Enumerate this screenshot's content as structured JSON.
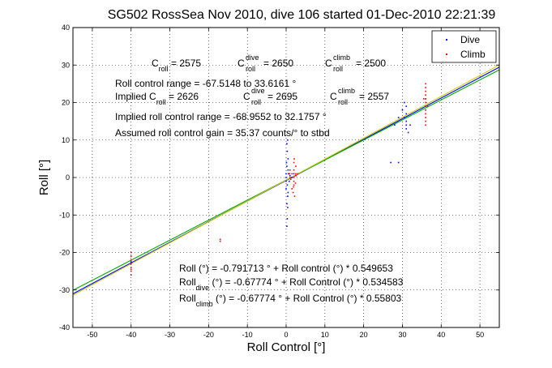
{
  "chart_data": {
    "type": "scatter",
    "title": "SG502 RossSea Nov 2010, dive 106 started 01-Dec-2010 22:21:39",
    "xlabel": "Roll Control [°]",
    "ylabel": "Roll [°]",
    "xlim": [
      -55,
      55
    ],
    "ylim": [
      -40,
      40
    ],
    "xticks": [
      -50,
      -40,
      -30,
      -20,
      -10,
      0,
      10,
      20,
      30,
      40,
      50
    ],
    "yticks": [
      -40,
      -30,
      -20,
      -10,
      0,
      10,
      20,
      30,
      40
    ],
    "grid": true,
    "legend": {
      "placement": "top-right",
      "entries": [
        "Dive",
        "Climb"
      ]
    },
    "colors": {
      "dive": "#0000ff",
      "climb": "#ff0000",
      "fit_all": "#0000ff",
      "fit_dive": "#00aa00",
      "fit_climb": "#cccc00"
    },
    "fit_lines": [
      {
        "color": "#0000ff",
        "intercept": -0.791713,
        "slope": 0.549653
      },
      {
        "color": "#00aa00",
        "intercept": -0.67774,
        "slope": 0.534583
      },
      {
        "color": "#cccc00",
        "intercept": -0.67774,
        "slope": 0.55803
      }
    ],
    "series": [
      {
        "name": "Dive",
        "points": [
          [
            -40,
            -22.5
          ],
          [
            -40,
            -22
          ],
          [
            -40,
            -23
          ],
          [
            0,
            -1
          ],
          [
            0,
            0
          ],
          [
            0,
            1
          ],
          [
            0.5,
            2
          ],
          [
            0.3,
            -2
          ],
          [
            0,
            -3
          ],
          [
            0.5,
            -4
          ],
          [
            0.2,
            3
          ],
          [
            0.5,
            5
          ],
          [
            0.3,
            7
          ],
          [
            0.2,
            9
          ],
          [
            0.4,
            10
          ],
          [
            0.4,
            -5
          ],
          [
            0.2,
            -7
          ],
          [
            0.4,
            -8
          ],
          [
            0.3,
            -11
          ],
          [
            0.2,
            -13
          ],
          [
            0.6,
            1
          ],
          [
            0.8,
            -1
          ],
          [
            1,
            0.5
          ],
          [
            0.1,
            4
          ],
          [
            1.5,
            0
          ],
          [
            2,
            1
          ],
          [
            2.5,
            0.5
          ],
          [
            28,
            14
          ],
          [
            29,
            16
          ],
          [
            30,
            18
          ],
          [
            30.5,
            16
          ],
          [
            31,
            14
          ],
          [
            31,
            13
          ],
          [
            31,
            15
          ],
          [
            31,
            17
          ],
          [
            31.5,
            12
          ],
          [
            32,
            14
          ],
          [
            31,
            19
          ],
          [
            30.5,
            20
          ],
          [
            29,
            4
          ],
          [
            27,
            4
          ],
          [
            36,
            18
          ],
          [
            36,
            19
          ],
          [
            36,
            21
          ]
        ]
      },
      {
        "name": "Climb",
        "points": [
          [
            -40,
            -20
          ],
          [
            -40,
            -21
          ],
          [
            -40,
            -22
          ],
          [
            -40,
            -23
          ],
          [
            -40,
            -24
          ],
          [
            -40,
            -25
          ],
          [
            -40,
            -26
          ],
          [
            -40,
            -24.5
          ],
          [
            -17,
            -17
          ],
          [
            -17,
            -16.5
          ],
          [
            1,
            0
          ],
          [
            1.5,
            1
          ],
          [
            2,
            0
          ],
          [
            2,
            2
          ],
          [
            2,
            -1
          ],
          [
            2.5,
            1
          ],
          [
            2.5,
            3
          ],
          [
            2,
            4
          ],
          [
            2,
            -2
          ],
          [
            1.5,
            -3
          ],
          [
            1,
            2
          ],
          [
            3,
            1
          ],
          [
            1.8,
            -4
          ],
          [
            2.2,
            -5
          ],
          [
            2.1,
            5
          ],
          [
            1.9,
            -2.5
          ],
          [
            2.4,
            -1.5
          ],
          [
            1.2,
            -0.5
          ],
          [
            0.9,
            1
          ],
          [
            2.6,
            0.5
          ],
          [
            36,
            14
          ],
          [
            36,
            16
          ],
          [
            36,
            17
          ],
          [
            36,
            18
          ],
          [
            36,
            19
          ],
          [
            36,
            20
          ],
          [
            36,
            21
          ],
          [
            36,
            22
          ],
          [
            36,
            23
          ],
          [
            36,
            24
          ],
          [
            36,
            25
          ],
          [
            35.5,
            21
          ],
          [
            36.5,
            19
          ],
          [
            36,
            15
          ]
        ]
      }
    ]
  },
  "annotations": {
    "c_roll": {
      "base": "C",
      "sub": "roll",
      "sup": "",
      "text": " = 2575"
    },
    "c_roll_dive": {
      "base": "C",
      "sub": "roll",
      "sup": "dive",
      "text": " = 2650"
    },
    "c_roll_climb": {
      "base": "C",
      "sub": "roll",
      "sup": "climb",
      "text": " = 2500"
    },
    "range_line": "Roll control range = -67.5148 to 33.6161 °",
    "implied_prefix": "Implied C",
    "implied_sub": "roll",
    "implied_text": " = 2626",
    "implied_dive": {
      "base": "C",
      "sub": "roll",
      "sup": "dive",
      "text": " = 2695"
    },
    "implied_climb": {
      "base": "C",
      "sub": "roll",
      "sup": "climb",
      "text": " = 2557"
    },
    "implied_range_line": "Implied roll control range = -68.9552 to 32.1757 °",
    "gain_line": "Assumed roll control gain = 35.37 counts/° to stbd",
    "fit_all": "Roll (°) = -0.791713 ° + Roll control (°) * 0.549653",
    "fit_dive_prefix": "Roll",
    "fit_dive_sub": "dive",
    "fit_dive_text": " (°) = -0.67774 ° + Roll Control (°) * 0.534583",
    "fit_climb_prefix": "Roll",
    "fit_climb_sub": "climb",
    "fit_climb_text": " (°) = -0.67774 ° + Roll Control (°) * 0.55803"
  }
}
